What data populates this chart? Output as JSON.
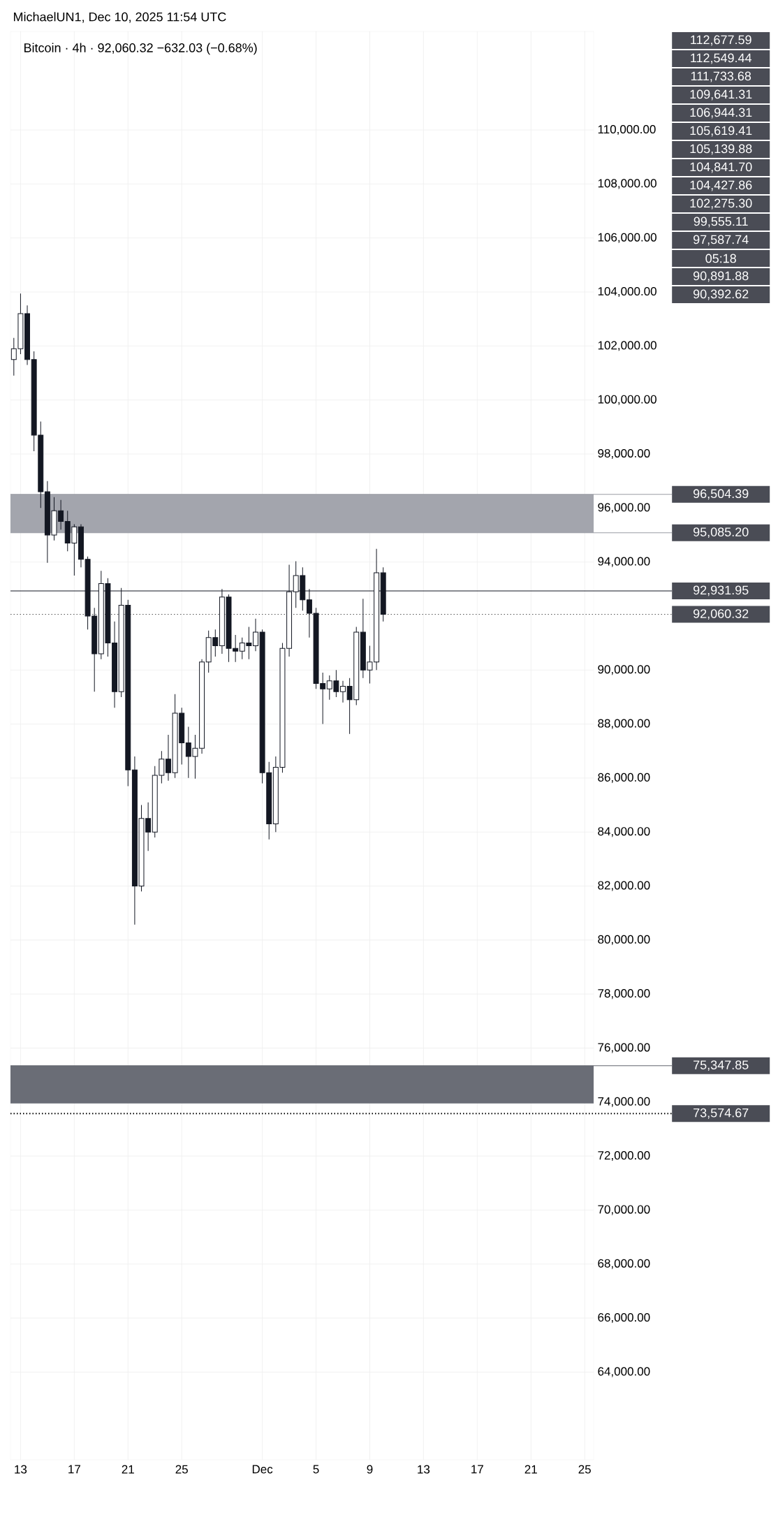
{
  "chart_data": {
    "type": "candlestick",
    "title": "Bitcoin · 4h · 92,060.32  −632.03 (−0.68%)",
    "color": "#131722",
    "x": [
      "2025-11-12T12:00",
      "2025-11-13T00:00",
      "2025-11-13T12:00",
      "2025-11-14T00:00",
      "2025-11-14T12:00",
      "2025-11-15T00:00",
      "2025-11-15T12:00",
      "2025-11-16T00:00",
      "2025-11-16T12:00",
      "2025-11-17T00:00",
      "2025-11-17T12:00",
      "2025-11-18T00:00",
      "2025-11-18T12:00",
      "2025-11-19T00:00",
      "2025-11-19T12:00",
      "2025-11-20T00:00",
      "2025-11-20T12:00",
      "2025-11-21T00:00",
      "2025-11-21T12:00",
      "2025-11-22T00:00",
      "2025-11-22T12:00",
      "2025-11-23T00:00",
      "2025-11-23T12:00",
      "2025-11-24T00:00",
      "2025-11-24T12:00",
      "2025-11-25T00:00",
      "2025-11-25T12:00",
      "2025-11-26T00:00",
      "2025-11-26T12:00",
      "2025-11-27T00:00",
      "2025-11-27T12:00",
      "2025-11-28T00:00",
      "2025-11-28T12:00",
      "2025-11-29T00:00",
      "2025-11-29T12:00",
      "2025-11-30T00:00",
      "2025-11-30T12:00",
      "2025-12-01T00:00",
      "2025-12-01T12:00",
      "2025-12-02T00:00",
      "2025-12-02T12:00",
      "2025-12-03T00:00",
      "2025-12-03T12:00",
      "2025-12-04T00:00",
      "2025-12-04T12:00",
      "2025-12-05T00:00",
      "2025-12-05T12:00",
      "2025-12-06T00:00",
      "2025-12-06T12:00",
      "2025-12-07T00:00",
      "2025-12-07T12:00",
      "2025-12-08T00:00",
      "2025-12-08T12:00",
      "2025-12-09T00:00",
      "2025-12-09T12:00",
      "2025-12-10T00:00"
    ],
    "ohlc": [
      [
        101500,
        102300,
        100900,
        101900
      ],
      [
        101900,
        103940,
        101700,
        103200
      ],
      [
        103200,
        103500,
        101300,
        101500
      ],
      [
        101500,
        101800,
        98100,
        98700
      ],
      [
        98700,
        99200,
        96000,
        96600
      ],
      [
        96600,
        97000,
        93970,
        95000
      ],
      [
        95000,
        96400,
        94800,
        95900
      ],
      [
        95900,
        96300,
        95200,
        95500
      ],
      [
        95500,
        95900,
        94400,
        94700
      ],
      [
        94700,
        95400,
        93500,
        95300
      ],
      [
        95300,
        95400,
        93800,
        94100
      ],
      [
        94100,
        94200,
        91500,
        92000
      ],
      [
        92000,
        92300,
        89200,
        90600
      ],
      [
        90600,
        93670,
        90400,
        93200
      ],
      [
        93200,
        93400,
        90500,
        91000
      ],
      [
        91000,
        91800,
        88600,
        89200
      ],
      [
        89200,
        93040,
        89000,
        92400
      ],
      [
        92400,
        92600,
        85700,
        86300
      ],
      [
        86300,
        86800,
        80570,
        82000
      ],
      [
        82000,
        85000,
        81800,
        84500
      ],
      [
        84500,
        85100,
        83300,
        84000
      ],
      [
        84000,
        86440,
        83800,
        86100
      ],
      [
        86100,
        87000,
        85800,
        86700
      ],
      [
        86700,
        87600,
        85900,
        86200
      ],
      [
        86200,
        89110,
        86000,
        88400
      ],
      [
        88400,
        88600,
        86500,
        87300
      ],
      [
        87300,
        87900,
        86000,
        86800
      ],
      [
        86800,
        87600,
        85980,
        87100
      ],
      [
        87100,
        90400,
        86900,
        90300
      ],
      [
        90300,
        91460,
        89900,
        91200
      ],
      [
        91200,
        91500,
        90500,
        90900
      ],
      [
        90900,
        93000,
        90600,
        92700
      ],
      [
        92700,
        92800,
        90300,
        90800
      ],
      [
        90800,
        91300,
        90300,
        90700
      ],
      [
        90700,
        91200,
        90400,
        91000
      ],
      [
        91000,
        91600,
        90400,
        90900
      ],
      [
        90900,
        91900,
        90700,
        91400
      ],
      [
        91400,
        91500,
        85800,
        86200
      ],
      [
        86200,
        86600,
        83730,
        84300
      ],
      [
        84300,
        86800,
        84000,
        86400
      ],
      [
        86400,
        91000,
        86200,
        90800
      ],
      [
        90800,
        93900,
        90500,
        92900
      ],
      [
        92900,
        94030,
        92300,
        93500
      ],
      [
        93500,
        93800,
        92200,
        92600
      ],
      [
        92600,
        93000,
        91200,
        92100
      ],
      [
        92100,
        92300,
        89300,
        89500
      ],
      [
        89500,
        89900,
        88000,
        89300
      ],
      [
        89300,
        89800,
        88900,
        89600
      ],
      [
        89600,
        90000,
        89000,
        89200
      ],
      [
        89200,
        89600,
        88800,
        89400
      ],
      [
        89400,
        89700,
        87630,
        88900
      ],
      [
        88900,
        91600,
        88700,
        91400
      ],
      [
        91400,
        92640,
        89700,
        90000
      ],
      [
        90000,
        90900,
        89500,
        90300
      ],
      [
        90300,
        94490,
        90000,
        93600
      ],
      [
        93600,
        93800,
        91800,
        92060.32
      ]
    ],
    "xlim": [
      "2025-11-12T06:00",
      "2025-12-25T16:00"
    ],
    "xticks": [
      {
        "value": "2025-11-13",
        "label": "13"
      },
      {
        "value": "2025-11-17",
        "label": "17"
      },
      {
        "value": "2025-11-21",
        "label": "21"
      },
      {
        "value": "2025-11-25",
        "label": "25"
      },
      {
        "value": "2025-12-01",
        "label": "Dec"
      },
      {
        "value": "2025-12-05",
        "label": "5"
      },
      {
        "value": "2025-12-09",
        "label": "9"
      },
      {
        "value": "2025-12-13",
        "label": "13"
      },
      {
        "value": "2025-12-17",
        "label": "17"
      },
      {
        "value": "2025-12-21",
        "label": "21"
      },
      {
        "value": "2025-12-25",
        "label": "25"
      }
    ],
    "ylim": [
      60750,
      113650
    ],
    "yticks": [
      {
        "value": 64000,
        "label": "64,000.00"
      },
      {
        "value": 66000,
        "label": "66,000.00"
      },
      {
        "value": 68000,
        "label": "68,000.00"
      },
      {
        "value": 70000,
        "label": "70,000.00"
      },
      {
        "value": 72000,
        "label": "72,000.00"
      },
      {
        "value": 74000,
        "label": "74,000.00"
      },
      {
        "value": 76000,
        "label": "76,000.00"
      },
      {
        "value": 78000,
        "label": "78,000.00"
      },
      {
        "value": 80000,
        "label": "80,000.00"
      },
      {
        "value": 82000,
        "label": "82,000.00"
      },
      {
        "value": 84000,
        "label": "84,000.00"
      },
      {
        "value": 86000,
        "label": "86,000.00"
      },
      {
        "value": 88000,
        "label": "88,000.00"
      },
      {
        "value": 90000,
        "label": "90,000.00"
      },
      {
        "value": 94000,
        "label": "94,000.00"
      },
      {
        "value": 96000,
        "label": "96,000.00"
      },
      {
        "value": 98000,
        "label": "98,000.00"
      },
      {
        "value": 100000,
        "label": "100,000.00"
      },
      {
        "value": 102000,
        "label": "102,000.00"
      },
      {
        "value": 104000,
        "label": "104,000.00"
      },
      {
        "value": 106000,
        "label": "106,000.00"
      },
      {
        "value": 108000,
        "label": "108,000.00"
      },
      {
        "value": 110000,
        "label": "110,000.00"
      }
    ],
    "grid": true,
    "bands": [
      {
        "axis": "y",
        "from": 95085.2,
        "to": 96504.39,
        "color": "#a3a5ad"
      },
      {
        "axis": "y",
        "from": 73950,
        "to": 75347.85,
        "color": "#6a6d76"
      }
    ],
    "ref_lines": [
      {
        "axis": "y",
        "value": 96504.39,
        "label": "96,504.39",
        "color": "#9a9ca4",
        "line_style": "solid"
      },
      {
        "axis": "y",
        "value": 95085.2,
        "label": "95,085.20",
        "color": "#9a9ca4",
        "line_style": "solid"
      },
      {
        "axis": "y",
        "value": 92931.95,
        "label": "92,931.95",
        "color": "#131722",
        "line_style": "solid"
      },
      {
        "axis": "y",
        "value": 92060.32,
        "label": "92,060.32",
        "color": "#555555",
        "line_style": "dotted"
      },
      {
        "axis": "y",
        "value": 75347.85,
        "label": "75,347.85",
        "color": "#62656e",
        "line_style": "solid"
      },
      {
        "axis": "y",
        "value": 73574.67,
        "label": "73,574.67",
        "color": "#000000",
        "line_style": "dotted"
      }
    ],
    "annotations": [
      "MichaelUN1, Dec 10, 2025 11:54 UTC",
      "112,677.59",
      "112,549.44",
      "111,733.68",
      "109,641.31",
      "106,944.31",
      "105,619.41",
      "105,139.88",
      "104,841.70",
      "104,427.86",
      "102,275.30",
      "99,555.11",
      "97,587.74",
      "05:18",
      "90,891.88",
      "90,392.62"
    ]
  }
}
